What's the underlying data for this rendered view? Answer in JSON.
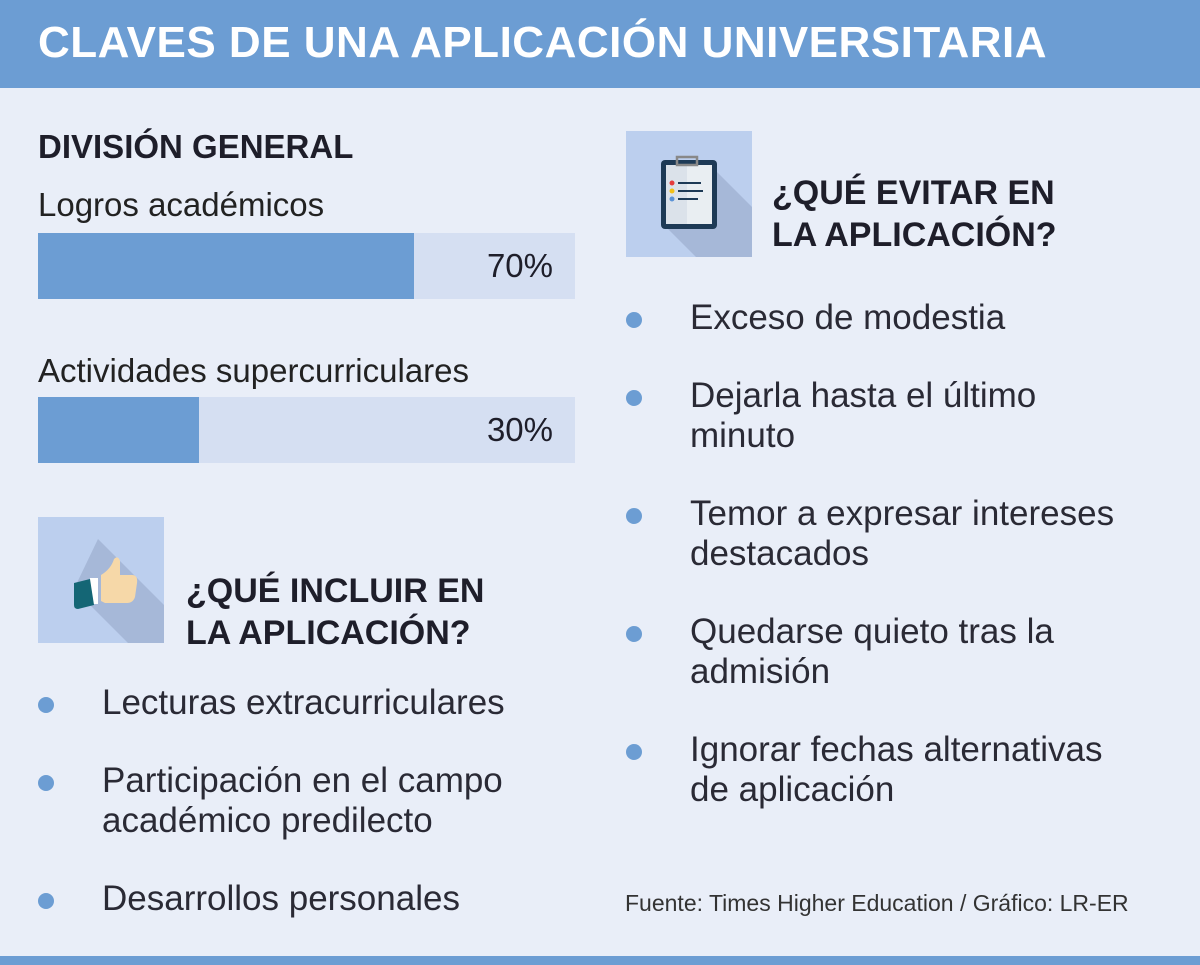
{
  "title": "CLAVES DE UNA APLICACIÓN UNIVERSITARIA",
  "division": {
    "title": "DIVISIÓN GENERAL",
    "items": [
      {
        "label": "Logros académicos",
        "value": 70,
        "value_label": "70%"
      },
      {
        "label": "Actividades supercurriculares",
        "value": 30,
        "value_label": "30%"
      }
    ]
  },
  "chart_data": {
    "type": "bar",
    "title": "DIVISIÓN GENERAL",
    "categories": [
      "Logros académicos",
      "Actividades supercurriculares"
    ],
    "values": [
      70,
      30
    ],
    "ylim": [
      0,
      100
    ],
    "orientation": "horizontal"
  },
  "incluir": {
    "icon": "thumbs-up-icon",
    "title_line1": "¿QUÉ INCLUIR EN",
    "title_line2": "LA APLICACIÓN?",
    "items": [
      "Lecturas extracurriculares",
      "Participación en el campo académico predilecto",
      "Desarrollos personales"
    ]
  },
  "evitar": {
    "icon": "clipboard-icon",
    "title_line1": "¿QUÉ EVITAR EN",
    "title_line2": "LA APLICACIÓN?",
    "items": [
      "Exceso de modestia",
      "Dejarla hasta el último minuto",
      "Temor a expresar intereses destacados",
      "Quedarse quieto tras la admisión",
      "Ignorar fechas alternativas de aplicación"
    ]
  },
  "source": "Fuente: Times Higher Education / Gráfico: LR-ER",
  "colors": {
    "accent": "#6c9dd3",
    "background": "#e9eef8",
    "bar_track": "#d5dff2",
    "icon_box": "#bccfee"
  }
}
